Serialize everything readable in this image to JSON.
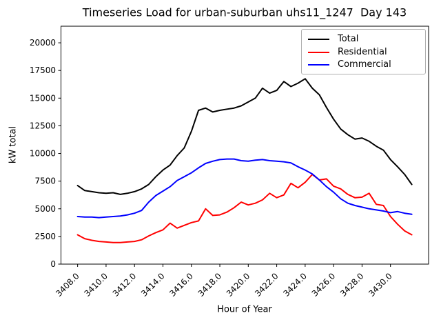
{
  "chart_data": {
    "type": "line",
    "title": "Timeseries Load for urban-suburban uhs11_1247  Day 143",
    "xlabel": "Hour of Year",
    "ylabel": "kW total",
    "xlim": [
      3406.83,
      3432.68
    ],
    "ylim": [
      0,
      21500
    ],
    "grid": false,
    "legend_position": "upper right",
    "xticks": [
      3408,
      3410,
      3412,
      3414,
      3416,
      3418,
      3420,
      3422,
      3424,
      3426,
      3428,
      3430
    ],
    "xtick_labels": [
      "3408.0",
      "3410.0",
      "3412.0",
      "3414.0",
      "3416.0",
      "3418.0",
      "3420.0",
      "3422.0",
      "3424.0",
      "3426.0",
      "3428.0",
      "3430.0"
    ],
    "yticks": [
      0,
      2500,
      5000,
      7500,
      10000,
      12500,
      15000,
      17500,
      20000
    ],
    "ytick_labels": [
      "0",
      "2500",
      "5000",
      "7500",
      "10000",
      "12500",
      "15000",
      "17500",
      "20000"
    ],
    "x": [
      3408.0,
      3408.5,
      3409.0,
      3409.5,
      3410.0,
      3410.5,
      3411.0,
      3411.5,
      3412.0,
      3412.5,
      3413.0,
      3413.5,
      3414.0,
      3414.5,
      3415.0,
      3415.5,
      3416.0,
      3416.5,
      3417.0,
      3417.5,
      3418.0,
      3418.5,
      3419.0,
      3419.5,
      3420.0,
      3420.5,
      3421.0,
      3421.5,
      3422.0,
      3422.5,
      3423.0,
      3423.5,
      3424.0,
      3424.5,
      3425.0,
      3425.5,
      3426.0,
      3426.5,
      3427.0,
      3427.5,
      3428.0,
      3428.5,
      3429.0,
      3429.5,
      3430.0,
      3430.5,
      3431.0,
      3431.5
    ],
    "series": [
      {
        "name": "Total",
        "color": "#000000",
        "values": [
          7100,
          6650,
          6550,
          6450,
          6400,
          6450,
          6300,
          6400,
          6550,
          6800,
          7200,
          7900,
          8500,
          8950,
          9800,
          10500,
          12000,
          13900,
          14100,
          13750,
          13900,
          14000,
          14100,
          14300,
          14650,
          15000,
          15900,
          15450,
          15700,
          16500,
          16050,
          16350,
          16750,
          15900,
          15300,
          14150,
          13100,
          12200,
          11700,
          11300,
          11400,
          11100,
          10650,
          10300,
          9450,
          8800,
          8100,
          7200
        ]
      },
      {
        "name": "Residential",
        "color": "#ff0000",
        "values": [
          2650,
          2300,
          2150,
          2050,
          2000,
          1950,
          1950,
          2000,
          2050,
          2200,
          2550,
          2850,
          3100,
          3700,
          3250,
          3500,
          3750,
          3900,
          5000,
          4400,
          4450,
          4700,
          5100,
          5600,
          5350,
          5500,
          5800,
          6400,
          6000,
          6250,
          7300,
          6900,
          7400,
          8100,
          7600,
          7700,
          7050,
          6800,
          6300,
          6000,
          6050,
          6400,
          5400,
          5300,
          4300,
          3600,
          3000,
          2650
        ]
      },
      {
        "name": "Commercial",
        "color": "#0000ff",
        "values": [
          4300,
          4250,
          4250,
          4200,
          4250,
          4300,
          4350,
          4450,
          4600,
          4850,
          5600,
          6200,
          6600,
          7000,
          7550,
          7900,
          8250,
          8700,
          9100,
          9300,
          9450,
          9500,
          9500,
          9350,
          9300,
          9400,
          9450,
          9350,
          9300,
          9250,
          9150,
          8800,
          8500,
          8150,
          7600,
          7000,
          6500,
          5900,
          5500,
          5300,
          5150,
          5000,
          4900,
          4800,
          4650,
          4750,
          4600,
          4500
        ]
      }
    ]
  }
}
